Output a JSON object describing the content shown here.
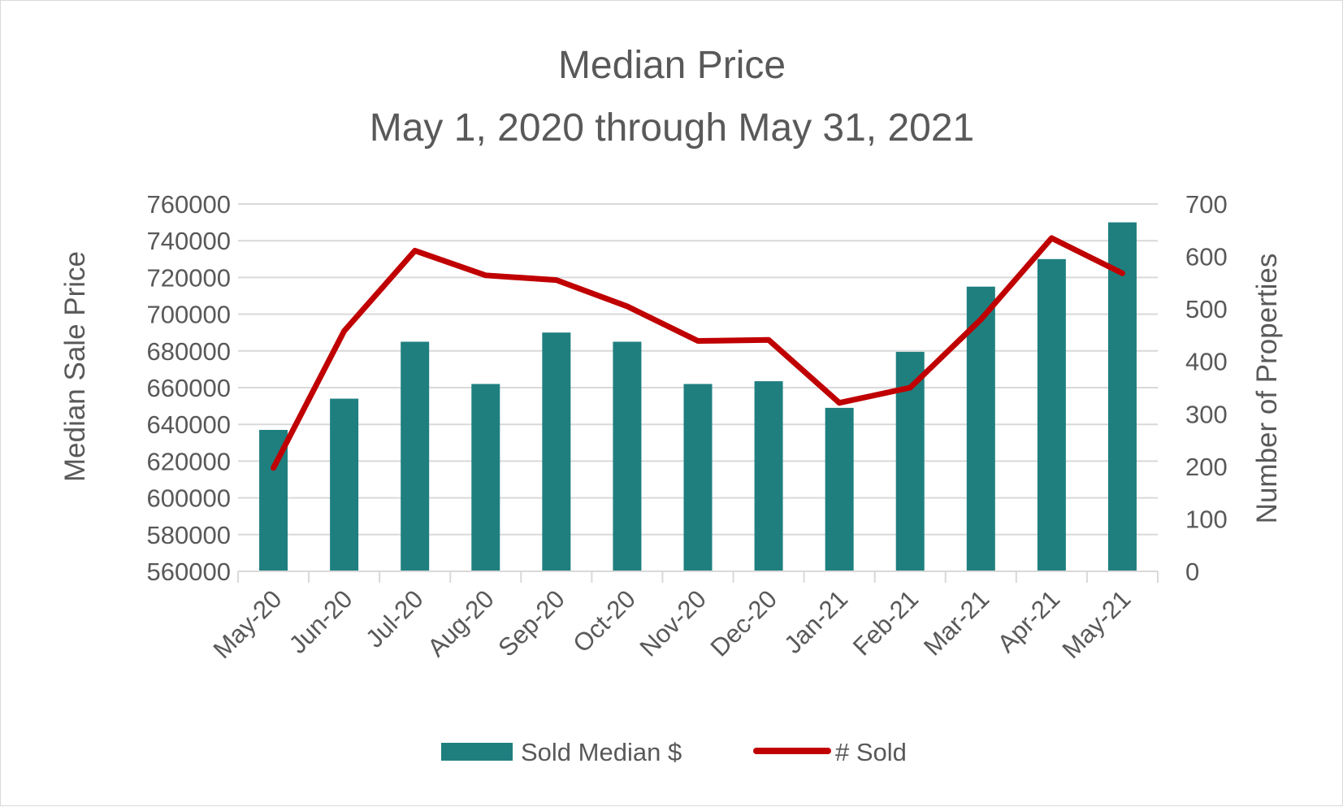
{
  "chart_data": {
    "type": "bar",
    "title_lines": [
      "Median Price",
      "May 1, 2020 through May 31, 2021"
    ],
    "categories": [
      "May-20",
      "Jun-20",
      "Jul-20",
      "Aug-20",
      "Sep-20",
      "Oct-20",
      "Nov-20",
      "Dec-20",
      "Jan-21",
      "Feb-21",
      "Mar-21",
      "Apr-21",
      "May-21"
    ],
    "series": [
      {
        "name": "Sold Median $",
        "type": "bar",
        "axis": "left",
        "color": "#1f7f7f",
        "values": [
          637000,
          654000,
          685000,
          662000,
          690000,
          685000,
          662000,
          663500,
          649000,
          679500,
          715000,
          730000,
          750000
        ]
      },
      {
        "name": "# Sold",
        "type": "line",
        "axis": "right",
        "color": "#c00000",
        "values": [
          197,
          458,
          611,
          564,
          555,
          505,
          439,
          441,
          321,
          350,
          480,
          635,
          568
        ]
      }
    ],
    "ylabel": "Median Sale Price",
    "ylim": [
      560000,
      760000
    ],
    "yticks": [
      "760000",
      "740000",
      "720000",
      "700000",
      "680000",
      "660000",
      "640000",
      "620000",
      "600000",
      "580000",
      "560000"
    ],
    "y2label": "Number of Properties",
    "y2lim": [
      0,
      700
    ],
    "y2ticks": [
      "700",
      "600",
      "500",
      "400",
      "300",
      "200",
      "100",
      "0"
    ],
    "grid": true,
    "legend_position": "bottom"
  }
}
